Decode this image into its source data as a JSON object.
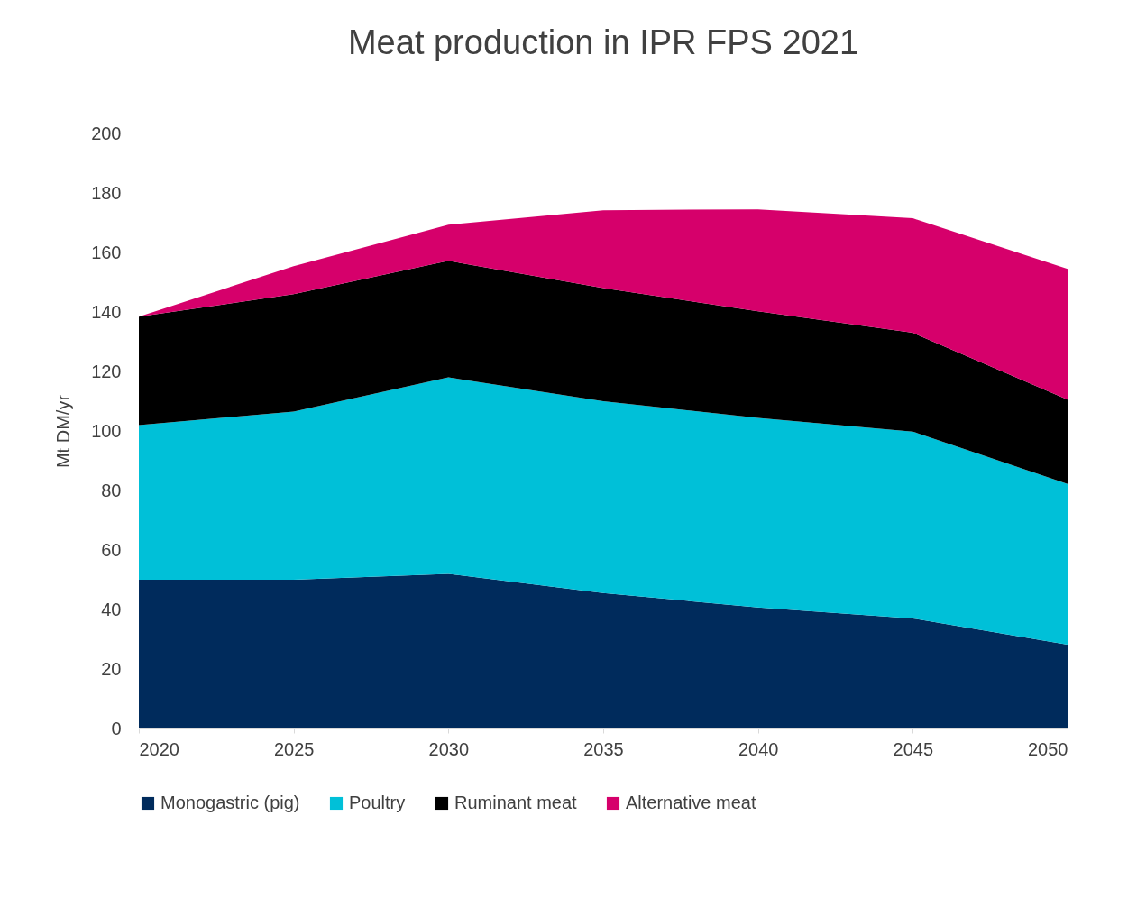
{
  "chart_data": {
    "type": "area",
    "title": "Meat production in IPR FPS 2021",
    "ylabel": "Mt DM/yr",
    "x": [
      2020,
      2025,
      2030,
      2035,
      2040,
      2045,
      2050
    ],
    "stacked": true,
    "xlim": [
      2020,
      2050
    ],
    "xticks": [
      2020,
      2025,
      2030,
      2035,
      2040,
      2045,
      2050
    ],
    "ylim": [
      0,
      200
    ],
    "yticks": [
      0,
      20,
      40,
      60,
      80,
      100,
      120,
      140,
      160,
      180,
      200
    ],
    "grid": false,
    "legend": "bottom",
    "series": [
      {
        "name": "Monogastric (pig)",
        "color": "#002b5c",
        "values": [
          50,
          50,
          52,
          45.5,
          40.7,
          37,
          28.2
        ]
      },
      {
        "name": "Poultry",
        "color": "#00c0d8",
        "values": [
          52,
          56.5,
          66,
          64.5,
          63.7,
          62.8,
          54
        ]
      },
      {
        "name": "Ruminant meat",
        "color": "#000000",
        "values": [
          36.4,
          39.5,
          39.2,
          38,
          35.8,
          33.2,
          28.3
        ]
      },
      {
        "name": "Alternative meat",
        "color": "#d6006b",
        "values": [
          0,
          9.4,
          12.1,
          26.2,
          34.3,
          38.5,
          44
        ]
      }
    ]
  }
}
